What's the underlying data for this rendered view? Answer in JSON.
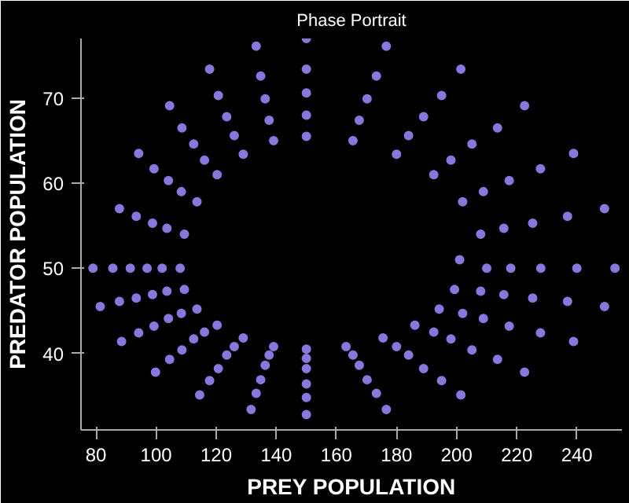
{
  "chart_data": {
    "type": "scatter",
    "title": "Phase Portrait",
    "xlabel": "PREY POPULATION",
    "ylabel": "PREDATOR POPULATION",
    "xlim": [
      75,
      255
    ],
    "ylim": [
      31,
      77
    ],
    "xticks": [
      80,
      100,
      120,
      140,
      160,
      180,
      200,
      220,
      240
    ],
    "yticks": [
      40,
      50,
      60,
      70
    ],
    "grid": false,
    "marker": "circle",
    "series": [
      {
        "color": "#8877dd",
        "x": [
          79,
          81.4,
          88.5,
          99.8,
          114.5,
          131.6,
          150,
          176.6,
          201.4,
          222.6,
          238.9,
          249.2,
          252.7,
          249.2,
          238.9,
          222.6,
          201.4,
          176.6,
          150,
          133.3,
          117.8,
          104.5,
          94.2,
          87.8,
          85.6,
          87.8,
          94.2,
          104.5,
          117.8,
          133.3,
          150,
          173.3,
          195,
          213.6,
          227.9,
          236.9,
          240,
          236.9,
          227.9,
          213.6,
          195,
          173.3,
          150,
          134.8,
          120.7,
          108.6,
          99.3,
          93.4,
          91.4,
          93.4,
          99.3,
          108.6,
          120.7,
          134.8,
          150,
          170.2,
          189,
          205.1,
          217.5,
          225.3,
          228,
          225.3,
          217.5,
          205.1,
          189,
          170.2,
          150,
          136.3,
          123.5,
          112.5,
          104.1,
          98.8,
          97,
          98.8,
          104.1,
          112.5,
          123.5,
          136.3,
          150,
          167.6,
          184,
          198.1,
          208.9,
          215.7,
          218,
          215.7,
          208.9,
          198.1,
          184,
          167.6,
          150,
          137.6,
          126,
          116.1,
          108.4,
          103.6,
          102,
          103.6,
          108.4,
          116.1,
          126,
          137.6,
          150,
          165.5,
          180,
          192.4,
          202,
          208,
          210,
          208,
          202,
          192.4,
          180,
          165.5,
          150,
          139.1,
          129,
          120.3,
          113.6,
          109.4,
          108,
          109.4,
          113.6,
          120.3,
          129,
          139.1,
          150,
          163.2,
          175.5,
          186.1,
          194.2,
          199.3,
          201
        ],
        "values": [
          50,
          45.5,
          41.4,
          37.8,
          35.1,
          33.4,
          32.8,
          33.4,
          35.1,
          37.8,
          41.4,
          45.5,
          50,
          57,
          63.5,
          69.1,
          73.4,
          76.1,
          77,
          76.1,
          73.4,
          69.1,
          63.5,
          57,
          50,
          46.1,
          42.4,
          39.3,
          36.8,
          35.3,
          34.8,
          35.3,
          36.8,
          39.3,
          42.4,
          46.1,
          50,
          56.1,
          61.7,
          66.5,
          70.3,
          72.6,
          73.4,
          72.6,
          70.3,
          66.5,
          61.7,
          56.1,
          50,
          46.5,
          43.2,
          40.4,
          38.2,
          36.9,
          36.4,
          36.9,
          38.2,
          40.4,
          43.2,
          46.5,
          50,
          55.3,
          60.3,
          64.6,
          67.8,
          69.9,
          70.6,
          69.9,
          67.8,
          64.6,
          60.3,
          55.3,
          50,
          46.9,
          44.1,
          41.7,
          39.8,
          38.6,
          38.2,
          38.6,
          39.8,
          41.7,
          44.1,
          46.9,
          50,
          54.7,
          59,
          62.7,
          65.6,
          67.4,
          68,
          67.4,
          65.6,
          62.7,
          59,
          54.7,
          50,
          47.3,
          44.7,
          42.5,
          40.8,
          39.8,
          39.4,
          39.8,
          40.8,
          42.5,
          44.7,
          47.3,
          50,
          54,
          57.8,
          61,
          63.4,
          65,
          65.5,
          65,
          63.4,
          61,
          57.8,
          54,
          50,
          47.5,
          45.2,
          43.3,
          41.8,
          40.8,
          40.5,
          40.8,
          41.8,
          43.3,
          45.2,
          47.5,
          51
        ]
      }
    ]
  }
}
